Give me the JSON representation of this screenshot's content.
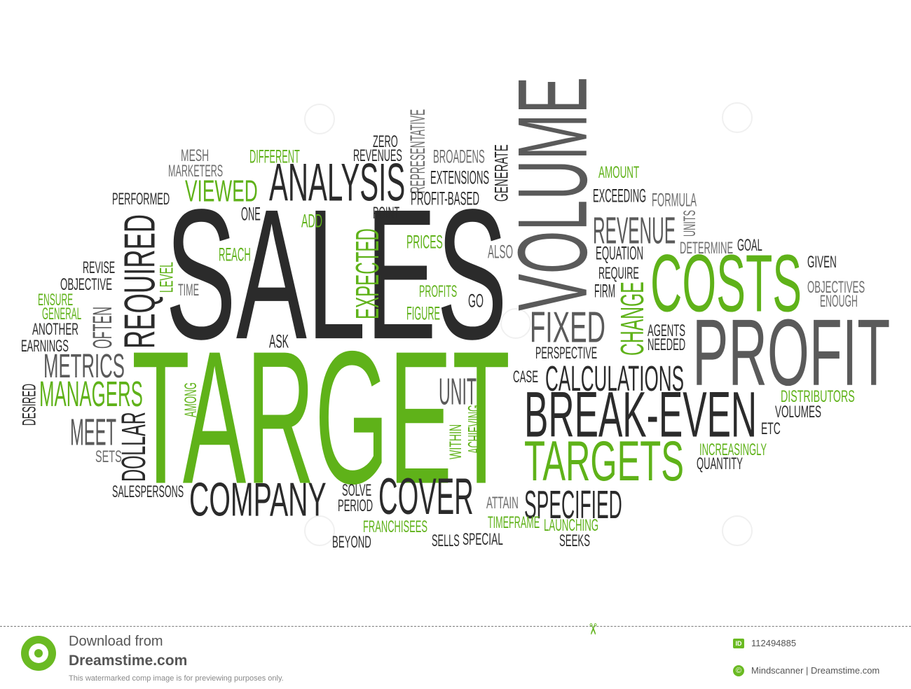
{
  "cloud_words": [
    {
      "t": "SALES",
      "c": "dk",
      "rot": 0
    },
    {
      "t": "TARGET",
      "c": "gr",
      "rot": 0
    },
    {
      "t": "VOLUME",
      "c": "md",
      "rot": -90
    },
    {
      "t": "PROFIT",
      "c": "md",
      "rot": 0
    },
    {
      "t": "COSTS",
      "c": "gr",
      "rot": 0
    },
    {
      "t": "BREAK-EVEN",
      "c": "dk",
      "rot": 0
    },
    {
      "t": "TARGETS",
      "c": "gr",
      "rot": 0
    },
    {
      "t": "ANALYSIS",
      "c": "dk",
      "rot": 0
    },
    {
      "t": "COMPANY",
      "c": "dk",
      "rot": 0
    },
    {
      "t": "COVER",
      "c": "dk",
      "rot": 0
    },
    {
      "t": "CALCULATIONS",
      "c": "dk",
      "rot": 0
    },
    {
      "t": "SPECIFIED",
      "c": "dk",
      "rot": 0
    },
    {
      "t": "FIXED",
      "c": "md",
      "rot": 0
    },
    {
      "t": "REVENUE",
      "c": "md",
      "rot": 0
    },
    {
      "t": "REQUIRED",
      "c": "dk",
      "rot": -90
    },
    {
      "t": "EXPECTED",
      "c": "gr",
      "rot": -90
    },
    {
      "t": "CHANGE",
      "c": "gr",
      "rot": -90
    },
    {
      "t": "DOLLAR",
      "c": "dk",
      "rot": -90
    },
    {
      "t": "OFTEN",
      "c": "md",
      "rot": -90
    },
    {
      "t": "METRICS",
      "c": "md",
      "rot": 0
    },
    {
      "t": "MANAGERS",
      "c": "gr",
      "rot": 0
    },
    {
      "t": "MEET",
      "c": "md",
      "rot": 0
    },
    {
      "t": "UNIT",
      "c": "md",
      "rot": 0
    },
    {
      "t": "VIEWED",
      "c": "gr",
      "rot": 0
    },
    {
      "t": "MESH",
      "c": "lt",
      "rot": 0
    },
    {
      "t": "MARKETERS",
      "c": "lt",
      "rot": 0
    },
    {
      "t": "DIFFERENT",
      "c": "gr",
      "rot": 0
    },
    {
      "t": "ZERO",
      "c": "dk",
      "rot": 0
    },
    {
      "t": "REVENUES",
      "c": "dk",
      "rot": 0
    },
    {
      "t": "REPRESENTATIVE",
      "c": "lt",
      "rot": -90
    },
    {
      "t": "BROADENS",
      "c": "lt",
      "rot": 0
    },
    {
      "t": "EXTENSIONS",
      "c": "dk",
      "rot": 0
    },
    {
      "t": "GENERATE",
      "c": "dk",
      "rot": -90
    },
    {
      "t": "PROFIT-BASED",
      "c": "dk",
      "rot": 0
    },
    {
      "t": "PERFORMED",
      "c": "dk",
      "rot": 0
    },
    {
      "t": "ONE",
      "c": "dk",
      "rot": 0
    },
    {
      "t": "ADD",
      "c": "gr",
      "rot": 0
    },
    {
      "t": "POINT",
      "c": "dk",
      "rot": 0
    },
    {
      "t": "PRICES",
      "c": "gr",
      "rot": 0
    },
    {
      "t": "ALSO",
      "c": "lt",
      "rot": 0
    },
    {
      "t": "REACH",
      "c": "gr",
      "rot": 0
    },
    {
      "t": "AMOUNT",
      "c": "gr",
      "rot": 0
    },
    {
      "t": "EXCEEDING",
      "c": "dk",
      "rot": 0
    },
    {
      "t": "FORMULA",
      "c": "lt",
      "rot": 0
    },
    {
      "t": "UNITS",
      "c": "lt",
      "rot": -90
    },
    {
      "t": "EQUATION",
      "c": "dk",
      "rot": 0
    },
    {
      "t": "DETERMINE",
      "c": "lt",
      "rot": 0
    },
    {
      "t": "GOAL",
      "c": "dk",
      "rot": 0
    },
    {
      "t": "REQUIRE",
      "c": "dk",
      "rot": 0
    },
    {
      "t": "FIRM",
      "c": "dk",
      "rot": 0
    },
    {
      "t": "GIVEN",
      "c": "dk",
      "rot": 0
    },
    {
      "t": "OBJECTIVES",
      "c": "lt",
      "rot": 0
    },
    {
      "t": "ENOUGH",
      "c": "lt",
      "rot": 0
    },
    {
      "t": "REVISE",
      "c": "dk",
      "rot": 0
    },
    {
      "t": "OBJECTIVE",
      "c": "dk",
      "rot": 0
    },
    {
      "t": "LEVEL",
      "c": "gr",
      "rot": -90
    },
    {
      "t": "TIME",
      "c": "lt",
      "rot": 0
    },
    {
      "t": "PROFITS",
      "c": "gr",
      "rot": 0
    },
    {
      "t": "GO",
      "c": "dk",
      "rot": 0
    },
    {
      "t": "FIGURE",
      "c": "gr",
      "rot": 0
    },
    {
      "t": "ENSURE",
      "c": "gr",
      "rot": 0
    },
    {
      "t": "GENERAL",
      "c": "gr",
      "rot": 0
    },
    {
      "t": "ANOTHER",
      "c": "dk",
      "rot": 0
    },
    {
      "t": "EARNINGS",
      "c": "dk",
      "rot": 0
    },
    {
      "t": "ASK",
      "c": "dk",
      "rot": 0
    },
    {
      "t": "PERSPECTIVE",
      "c": "dk",
      "rot": 0
    },
    {
      "t": "AGENTS",
      "c": "dk",
      "rot": 0
    },
    {
      "t": "NEEDED",
      "c": "dk",
      "rot": 0
    },
    {
      "t": "CASE",
      "c": "dk",
      "rot": 0
    },
    {
      "t": "DESIRED",
      "c": "dk",
      "rot": -90
    },
    {
      "t": "AMONG",
      "c": "gr",
      "rot": -90
    },
    {
      "t": "WITHIN",
      "c": "gr",
      "rot": -90
    },
    {
      "t": "ACHIEVING",
      "c": "gr",
      "rot": -90
    },
    {
      "t": "DISTRIBUTORS",
      "c": "gr",
      "rot": 0
    },
    {
      "t": "VOLUMES",
      "c": "dk",
      "rot": 0
    },
    {
      "t": "ETC",
      "c": "dk",
      "rot": 0
    },
    {
      "t": "INCREASINGLY",
      "c": "gr",
      "rot": 0
    },
    {
      "t": "QUANTITY",
      "c": "dk",
      "rot": 0
    },
    {
      "t": "SETS",
      "c": "lt",
      "rot": 0
    },
    {
      "t": "SALESPERSONS",
      "c": "dk",
      "rot": 0
    },
    {
      "t": "SOLVE",
      "c": "dk",
      "rot": 0
    },
    {
      "t": "PERIOD",
      "c": "dk",
      "rot": 0
    },
    {
      "t": "ATTAIN",
      "c": "lt",
      "rot": 0
    },
    {
      "t": "FRANCHISEES",
      "c": "gr",
      "rot": 0
    },
    {
      "t": "TIMEFRAME",
      "c": "gr",
      "rot": 0
    },
    {
      "t": "LAUNCHING",
      "c": "gr",
      "rot": 0
    },
    {
      "t": "BEYOND",
      "c": "dk",
      "rot": 0
    },
    {
      "t": "SELLS",
      "c": "dk",
      "rot": 0
    },
    {
      "t": "SPECIAL",
      "c": "dk",
      "rot": 0
    },
    {
      "t": "SEEKS",
      "c": "dk",
      "rot": 0
    }
  ],
  "footer": {
    "download_line1": "Download from",
    "download_line2": "Dreamstime.com",
    "note": "This watermarked comp image is for previewing purposes only.",
    "id_badge": "ID",
    "id_value": "112494885",
    "copyright_badge": "©",
    "copyright_value": "Mindscanner | Dreamstime.com"
  },
  "colors": {
    "green": "#5fb219",
    "dark": "#2b2b2b",
    "mid": "#5a5a5a",
    "light": "#6e6e6e"
  }
}
